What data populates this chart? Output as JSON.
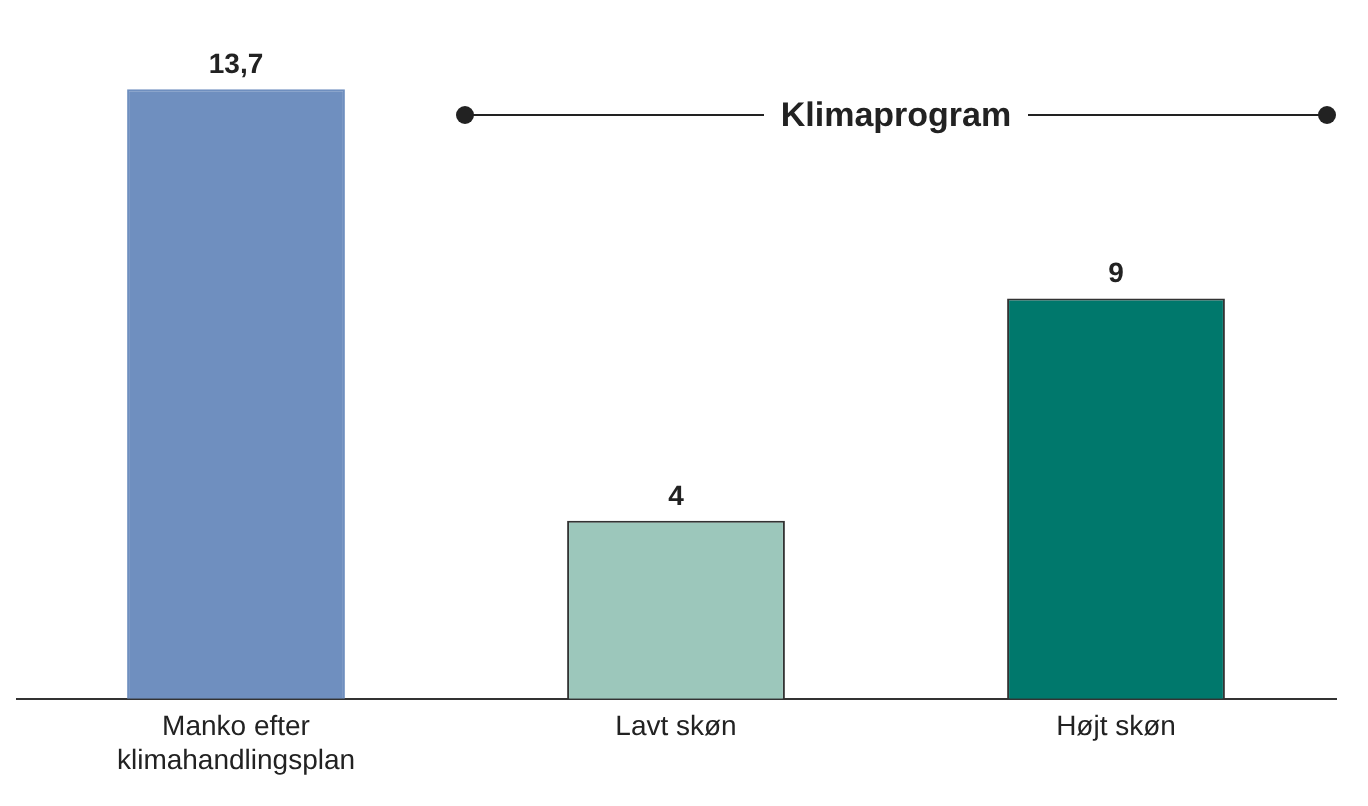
{
  "chart_data": {
    "type": "bar",
    "categories": [
      "Manko efter klimahandlingsplan",
      "Lavt skøn",
      "Højt skøn"
    ],
    "values": [
      13.7,
      4,
      9
    ],
    "colors": [
      "#6f8fbf",
      "#9cc7bb",
      "#00786c"
    ],
    "value_labels": [
      "13,7",
      "4",
      "9"
    ],
    "annotations": [
      "Klimaprogram"
    ],
    "grid": false,
    "legend": false
  }
}
